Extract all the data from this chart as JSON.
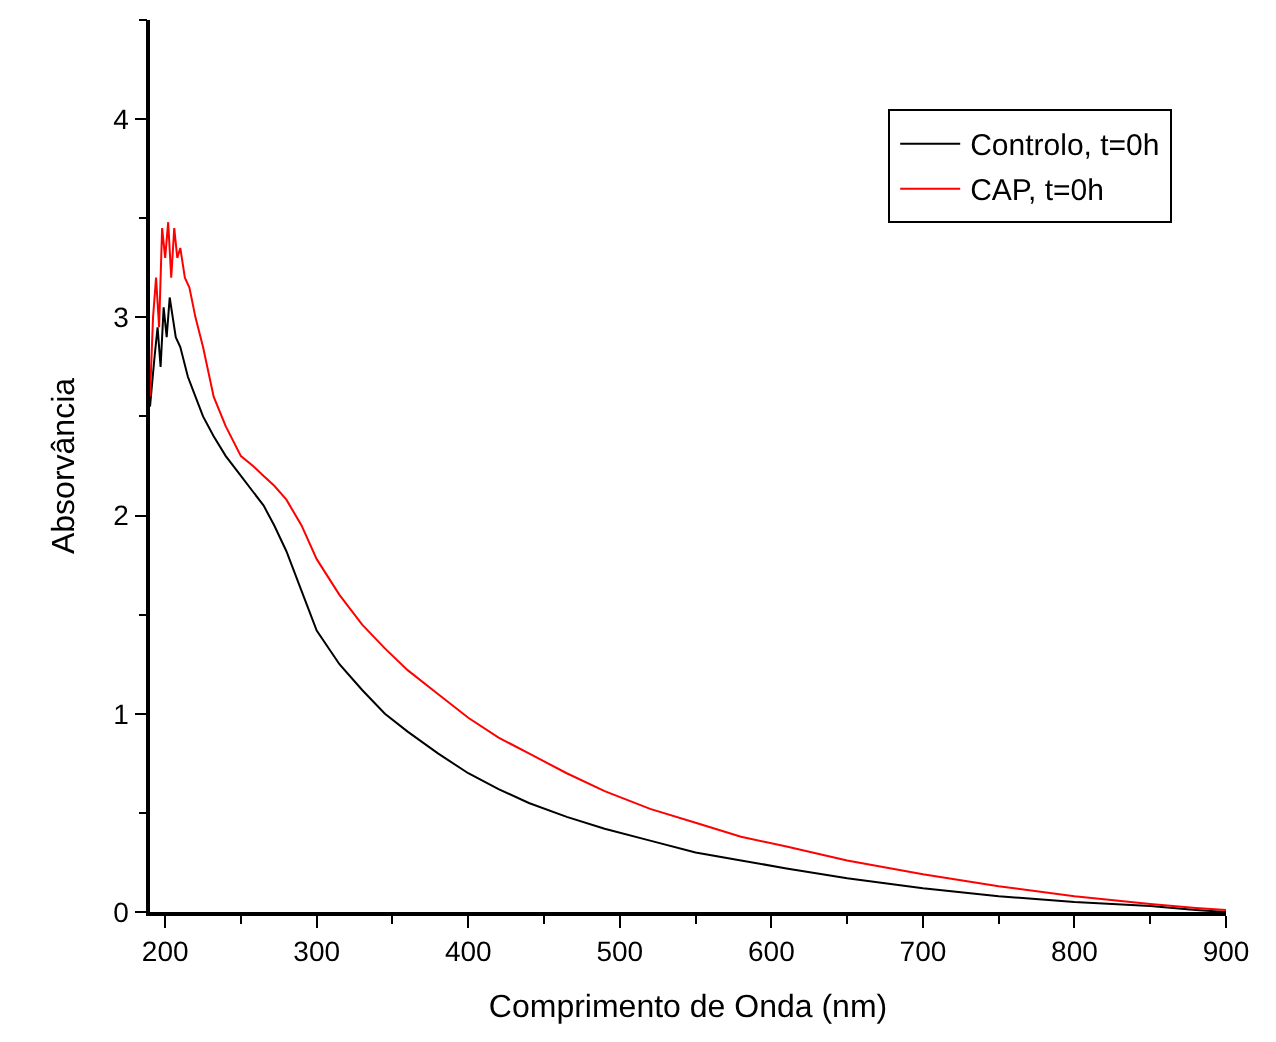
{
  "chart_data": {
    "type": "line",
    "xlabel": "Comprimento de Onda (nm)",
    "ylabel": "Absorvância",
    "xlim": [
      190,
      900
    ],
    "xticks": [
      200,
      300,
      400,
      500,
      600,
      700,
      800,
      900
    ],
    "ylim": [
      0,
      4.5
    ],
    "yticks": [
      0,
      1,
      2,
      3,
      4
    ],
    "legend": "top right",
    "marker": "none",
    "line_style": "solid",
    "series": [
      {
        "name": "Controlo, t=0h",
        "color": "#000000",
        "x": [
          190,
          193,
          195,
          197,
          199,
          201,
          203,
          205,
          207,
          210,
          215,
          220,
          225,
          232,
          240,
          250,
          258,
          265,
          272,
          280,
          290,
          300,
          315,
          330,
          345,
          360,
          380,
          400,
          420,
          440,
          465,
          490,
          520,
          550,
          580,
          610,
          650,
          700,
          750,
          800,
          850,
          880,
          900
        ],
        "values": [
          2.55,
          2.8,
          2.95,
          2.75,
          3.05,
          2.9,
          3.1,
          3.0,
          2.9,
          2.85,
          2.7,
          2.6,
          2.5,
          2.4,
          2.3,
          2.2,
          2.12,
          2.05,
          1.95,
          1.82,
          1.62,
          1.42,
          1.25,
          1.12,
          1.0,
          0.91,
          0.8,
          0.7,
          0.62,
          0.55,
          0.48,
          0.42,
          0.36,
          0.3,
          0.26,
          0.22,
          0.17,
          0.12,
          0.08,
          0.05,
          0.03,
          0.01,
          0.0
        ]
      },
      {
        "name": "CAP, t=0h",
        "color": "#ff0000",
        "x": [
          190,
          192,
          194,
          196,
          198,
          200,
          202,
          204,
          206,
          208,
          210,
          213,
          216,
          220,
          225,
          232,
          240,
          250,
          258,
          265,
          272,
          280,
          290,
          300,
          315,
          330,
          345,
          360,
          380,
          400,
          420,
          440,
          465,
          490,
          520,
          550,
          580,
          610,
          650,
          700,
          750,
          800,
          850,
          880,
          900
        ],
        "values": [
          2.6,
          3.0,
          3.2,
          2.95,
          3.45,
          3.3,
          3.48,
          3.2,
          3.45,
          3.3,
          3.35,
          3.2,
          3.15,
          3.0,
          2.85,
          2.6,
          2.45,
          2.3,
          2.25,
          2.2,
          2.15,
          2.08,
          1.95,
          1.78,
          1.6,
          1.45,
          1.33,
          1.22,
          1.1,
          0.98,
          0.88,
          0.8,
          0.7,
          0.61,
          0.52,
          0.45,
          0.38,
          0.33,
          0.26,
          0.19,
          0.13,
          0.08,
          0.04,
          0.02,
          0.01
        ]
      }
    ]
  }
}
